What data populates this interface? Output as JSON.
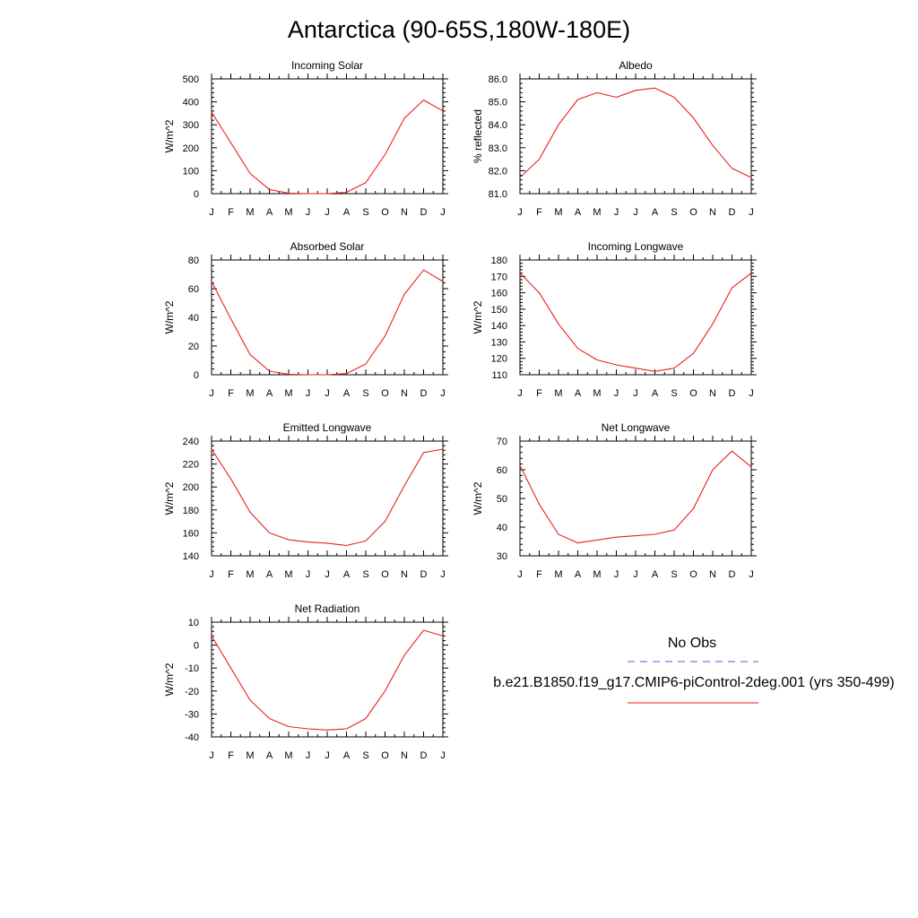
{
  "page": {
    "title": "Antarctica (90-65S,180W-180E)"
  },
  "colors": {
    "model": "#e8201c",
    "obs": "#5a5ae0",
    "frame": "#000000"
  },
  "legend": {
    "obs_label": "No Obs",
    "model_label": "b.e21.B1850.f19_g17.CMIP6-piControl-2deg.001 (yrs 350-499)"
  },
  "chart_data": [
    {
      "type": "line",
      "title": "Incoming Solar",
      "ylabel": "W/m^2",
      "categories": [
        "J",
        "F",
        "M",
        "A",
        "M",
        "J",
        "J",
        "A",
        "S",
        "O",
        "N",
        "D",
        "J"
      ],
      "ylim": [
        0,
        500
      ],
      "yticks": [
        0,
        100,
        200,
        300,
        400,
        500
      ],
      "ytick_labels": [
        "0",
        "100",
        "200",
        "300",
        "400",
        "500"
      ],
      "values": [
        355,
        222,
        88,
        18,
        2,
        0,
        0,
        6,
        48,
        170,
        328,
        408,
        360
      ]
    },
    {
      "type": "line",
      "title": "Albedo",
      "ylabel": "% reflected",
      "categories": [
        "J",
        "F",
        "M",
        "A",
        "M",
        "J",
        "J",
        "A",
        "S",
        "O",
        "N",
        "D",
        "J"
      ],
      "ylim": [
        81,
        86
      ],
      "yticks": [
        81,
        82,
        83,
        84,
        85,
        86
      ],
      "ytick_labels": [
        "81.0",
        "82.0",
        "83.0",
        "84.0",
        "85.0",
        "86.0"
      ],
      "values": [
        81.7,
        82.5,
        84.0,
        85.1,
        85.4,
        85.2,
        85.5,
        85.6,
        85.2,
        84.3,
        83.1,
        82.1,
        81.7
      ]
    },
    {
      "type": "line",
      "title": "Absorbed Solar",
      "ylabel": "W/m^2",
      "categories": [
        "J",
        "F",
        "M",
        "A",
        "M",
        "J",
        "J",
        "A",
        "S",
        "O",
        "N",
        "D",
        "J"
      ],
      "ylim": [
        0,
        80
      ],
      "yticks": [
        0,
        20,
        40,
        60,
        80
      ],
      "ytick_labels": [
        "0",
        "20",
        "40",
        "60",
        "80"
      ],
      "values": [
        65,
        39,
        14,
        2.5,
        0.3,
        0,
        0,
        0.8,
        7.5,
        27,
        56,
        73,
        65
      ]
    },
    {
      "type": "line",
      "title": "Incoming Longwave",
      "ylabel": "W/m^2",
      "categories": [
        "J",
        "F",
        "M",
        "A",
        "M",
        "J",
        "J",
        "A",
        "S",
        "O",
        "N",
        "D",
        "J"
      ],
      "ylim": [
        110,
        180
      ],
      "yticks": [
        110,
        120,
        130,
        140,
        150,
        160,
        170,
        180
      ],
      "ytick_labels": [
        "110",
        "120",
        "130",
        "140",
        "150",
        "160",
        "170",
        "180"
      ],
      "values": [
        172,
        160,
        141,
        126,
        119,
        116,
        114,
        112,
        114,
        123,
        141,
        163,
        172
      ]
    },
    {
      "type": "line",
      "title": "Emitted Longwave",
      "ylabel": "W/m^2",
      "categories": [
        "J",
        "F",
        "M",
        "A",
        "M",
        "J",
        "J",
        "A",
        "S",
        "O",
        "N",
        "D",
        "J"
      ],
      "ylim": [
        140,
        240
      ],
      "yticks": [
        140,
        160,
        180,
        200,
        220,
        240
      ],
      "ytick_labels": [
        "140",
        "160",
        "180",
        "200",
        "220",
        "240"
      ],
      "values": [
        233,
        207,
        178,
        160,
        154,
        152,
        151,
        149,
        153,
        170,
        201,
        230,
        233
      ]
    },
    {
      "type": "line",
      "title": "Net Longwave",
      "ylabel": "W/m^2",
      "categories": [
        "J",
        "F",
        "M",
        "A",
        "M",
        "J",
        "J",
        "A",
        "S",
        "O",
        "N",
        "D",
        "J"
      ],
      "ylim": [
        30,
        70
      ],
      "yticks": [
        30,
        40,
        50,
        60,
        70
      ],
      "ytick_labels": [
        "30",
        "40",
        "50",
        "60",
        "70"
      ],
      "values": [
        61.5,
        48,
        37.5,
        34.5,
        35.5,
        36.5,
        37,
        37.5,
        39,
        46.5,
        60,
        66.5,
        61
      ]
    },
    {
      "type": "line",
      "title": "Net Radiation",
      "ylabel": "W/m^2",
      "categories": [
        "J",
        "F",
        "M",
        "A",
        "M",
        "J",
        "J",
        "A",
        "S",
        "O",
        "N",
        "D",
        "J"
      ],
      "ylim": [
        -40,
        10
      ],
      "yticks": [
        -40,
        -30,
        -20,
        -10,
        0,
        10
      ],
      "ytick_labels": [
        "-40",
        "-30",
        "-20",
        "-10",
        "0",
        "10"
      ],
      "values": [
        4,
        -10,
        -24,
        -32,
        -35.5,
        -36.5,
        -37,
        -36.5,
        -32,
        -20,
        -4.5,
        6.5,
        4
      ]
    }
  ]
}
